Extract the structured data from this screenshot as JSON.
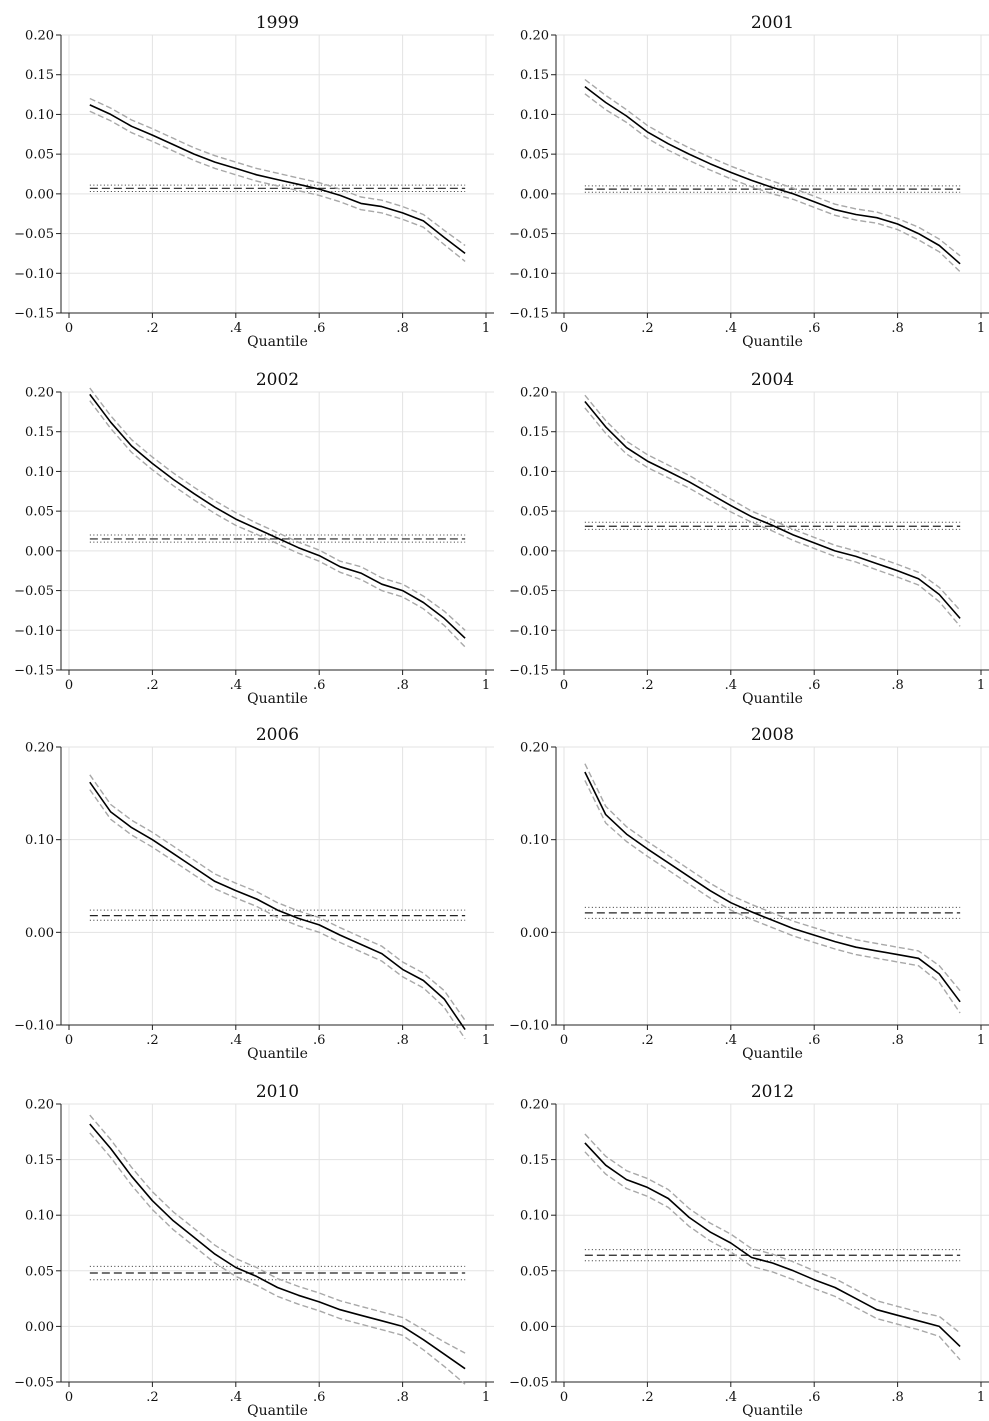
{
  "chart_data": [
    {
      "type": "line",
      "title": "1999",
      "xlabel": "Quantile",
      "xlim": [
        0,
        1
      ],
      "ylim": [
        -0.15,
        0.2
      ],
      "x_ticks": [
        "0",
        ".2",
        ".4",
        ".6",
        ".8",
        "1"
      ],
      "y_ticks": [
        "0.20",
        "0.15",
        "0.10",
        "0.05",
        "0.00",
        "-0.05",
        "-0.10",
        "-0.15"
      ],
      "grid": true,
      "x": [
        0.05,
        0.1,
        0.15,
        0.2,
        0.25,
        0.3,
        0.35,
        0.4,
        0.45,
        0.5,
        0.55,
        0.6,
        0.65,
        0.7,
        0.75,
        0.8,
        0.85,
        0.9,
        0.95
      ],
      "series": [
        {
          "role": "estimate",
          "color": "#000000",
          "dash": "solid",
          "values": [
            0.112,
            0.1,
            0.085,
            0.074,
            0.062,
            0.05,
            0.04,
            0.032,
            0.024,
            0.018,
            0.012,
            0.006,
            -0.002,
            -0.012,
            -0.016,
            -0.024,
            -0.034,
            -0.055,
            -0.075
          ]
        },
        {
          "role": "upper_ci",
          "color": "#a8a8a8",
          "dash": "dashed",
          "values": [
            0.12,
            0.108,
            0.093,
            0.082,
            0.07,
            0.058,
            0.048,
            0.04,
            0.032,
            0.026,
            0.02,
            0.014,
            0.006,
            -0.004,
            -0.008,
            -0.016,
            -0.026,
            -0.046,
            -0.065
          ]
        },
        {
          "role": "lower_ci",
          "color": "#a8a8a8",
          "dash": "dashed",
          "values": [
            0.104,
            0.092,
            0.077,
            0.066,
            0.054,
            0.042,
            0.032,
            0.024,
            0.016,
            0.01,
            0.004,
            -0.002,
            -0.01,
            -0.02,
            -0.024,
            -0.032,
            -0.042,
            -0.064,
            -0.085
          ]
        }
      ],
      "ols_estimate": 0.007,
      "ols_ci": [
        0.003,
        0.011
      ]
    },
    {
      "type": "line",
      "title": "2001",
      "xlabel": "Quantile",
      "xlim": [
        0,
        1
      ],
      "ylim": [
        -0.15,
        0.2
      ],
      "x_ticks": [
        "0",
        ".2",
        ".4",
        ".6",
        ".8",
        "1"
      ],
      "y_ticks": [
        "0.20",
        "0.15",
        "0.10",
        "0.05",
        "0.00",
        "-0.05",
        "-0.10",
        "-0.15"
      ],
      "grid": true,
      "x": [
        0.05,
        0.1,
        0.15,
        0.2,
        0.25,
        0.3,
        0.35,
        0.4,
        0.45,
        0.5,
        0.55,
        0.6,
        0.65,
        0.7,
        0.75,
        0.8,
        0.85,
        0.9,
        0.95
      ],
      "series": [
        {
          "role": "estimate",
          "color": "#000000",
          "dash": "solid",
          "values": [
            0.135,
            0.115,
            0.098,
            0.078,
            0.063,
            0.05,
            0.038,
            0.027,
            0.017,
            0.008,
            0.0,
            -0.01,
            -0.02,
            -0.026,
            -0.03,
            -0.038,
            -0.05,
            -0.065,
            -0.088
          ]
        },
        {
          "role": "upper_ci",
          "color": "#a8a8a8",
          "dash": "dashed",
          "values": [
            0.144,
            0.124,
            0.106,
            0.086,
            0.071,
            0.058,
            0.046,
            0.035,
            0.025,
            0.016,
            0.007,
            -0.003,
            -0.013,
            -0.019,
            -0.023,
            -0.031,
            -0.042,
            -0.057,
            -0.078
          ]
        },
        {
          "role": "lower_ci",
          "color": "#a8a8a8",
          "dash": "dashed",
          "values": [
            0.126,
            0.106,
            0.09,
            0.07,
            0.055,
            0.042,
            0.03,
            0.019,
            0.009,
            0.0,
            -0.007,
            -0.017,
            -0.027,
            -0.033,
            -0.037,
            -0.045,
            -0.058,
            -0.073,
            -0.098
          ]
        }
      ],
      "ols_estimate": 0.006,
      "ols_ci": [
        0.002,
        0.01
      ]
    },
    {
      "type": "line",
      "title": "2002",
      "xlabel": "Quantile",
      "xlim": [
        0,
        1
      ],
      "ylim": [
        -0.15,
        0.2
      ],
      "x_ticks": [
        "0",
        ".2",
        ".4",
        ".6",
        ".8",
        "1"
      ],
      "y_ticks": [
        "0.20",
        "0.15",
        "0.10",
        "0.05",
        "0.00",
        "-0.05",
        "-0.10",
        "-0.15"
      ],
      "grid": true,
      "x": [
        0.05,
        0.1,
        0.15,
        0.2,
        0.25,
        0.3,
        0.35,
        0.4,
        0.45,
        0.5,
        0.55,
        0.6,
        0.65,
        0.7,
        0.75,
        0.8,
        0.85,
        0.9,
        0.95
      ],
      "series": [
        {
          "role": "estimate",
          "color": "#000000",
          "dash": "solid",
          "values": [
            0.197,
            0.162,
            0.132,
            0.11,
            0.09,
            0.072,
            0.055,
            0.04,
            0.028,
            0.016,
            0.004,
            -0.006,
            -0.02,
            -0.028,
            -0.042,
            -0.05,
            -0.065,
            -0.085,
            -0.11
          ]
        },
        {
          "role": "upper_ci",
          "color": "#a8a8a8",
          "dash": "dashed",
          "values": [
            0.205,
            0.17,
            0.14,
            0.118,
            0.098,
            0.08,
            0.063,
            0.048,
            0.035,
            0.023,
            0.011,
            0.001,
            -0.013,
            -0.02,
            -0.034,
            -0.042,
            -0.057,
            -0.076,
            -0.1
          ]
        },
        {
          "role": "lower_ci",
          "color": "#a8a8a8",
          "dash": "dashed",
          "values": [
            0.189,
            0.154,
            0.124,
            0.102,
            0.082,
            0.064,
            0.047,
            0.032,
            0.021,
            0.009,
            -0.003,
            -0.013,
            -0.027,
            -0.036,
            -0.05,
            -0.058,
            -0.073,
            -0.094,
            -0.121
          ]
        }
      ],
      "ols_estimate": 0.015,
      "ols_ci": [
        0.011,
        0.02
      ]
    },
    {
      "type": "line",
      "title": "2004",
      "xlabel": "Quantile",
      "xlim": [
        0,
        1
      ],
      "ylim": [
        -0.15,
        0.2
      ],
      "x_ticks": [
        "0",
        ".2",
        ".4",
        ".6",
        ".8",
        "1"
      ],
      "y_ticks": [
        "0.20",
        "0.15",
        "0.10",
        "0.05",
        "0.00",
        "-0.05",
        "-0.10",
        "-0.15"
      ],
      "grid": true,
      "x": [
        0.05,
        0.1,
        0.15,
        0.2,
        0.25,
        0.3,
        0.35,
        0.4,
        0.45,
        0.5,
        0.55,
        0.6,
        0.65,
        0.7,
        0.75,
        0.8,
        0.85,
        0.9,
        0.95
      ],
      "series": [
        {
          "role": "estimate",
          "color": "#000000",
          "dash": "solid",
          "values": [
            0.188,
            0.156,
            0.13,
            0.113,
            0.1,
            0.087,
            0.072,
            0.057,
            0.043,
            0.032,
            0.02,
            0.01,
            0.0,
            -0.007,
            -0.016,
            -0.025,
            -0.035,
            -0.055,
            -0.085
          ]
        },
        {
          "role": "upper_ci",
          "color": "#a8a8a8",
          "dash": "dashed",
          "values": [
            0.196,
            0.164,
            0.138,
            0.121,
            0.108,
            0.095,
            0.08,
            0.065,
            0.05,
            0.039,
            0.027,
            0.017,
            0.007,
            0.0,
            -0.008,
            -0.017,
            -0.027,
            -0.046,
            -0.075
          ]
        },
        {
          "role": "lower_ci",
          "color": "#a8a8a8",
          "dash": "dashed",
          "values": [
            0.18,
            0.148,
            0.122,
            0.105,
            0.092,
            0.079,
            0.064,
            0.049,
            0.036,
            0.025,
            0.013,
            0.003,
            -0.007,
            -0.014,
            -0.024,
            -0.033,
            -0.043,
            -0.064,
            -0.095
          ]
        }
      ],
      "ols_estimate": 0.031,
      "ols_ci": [
        0.027,
        0.036
      ]
    },
    {
      "type": "line",
      "title": "2006",
      "xlabel": "Quantile",
      "xlim": [
        0,
        1
      ],
      "ylim": [
        -0.1,
        0.2
      ],
      "x_ticks": [
        "0",
        ".2",
        ".4",
        ".6",
        ".8",
        "1"
      ],
      "y_ticks": [
        "0.20",
        "0.10",
        "0.00",
        "-0.10"
      ],
      "grid": true,
      "x": [
        0.05,
        0.1,
        0.15,
        0.2,
        0.25,
        0.3,
        0.35,
        0.4,
        0.45,
        0.5,
        0.55,
        0.6,
        0.65,
        0.7,
        0.75,
        0.8,
        0.85,
        0.9,
        0.95
      ],
      "series": [
        {
          "role": "estimate",
          "color": "#000000",
          "dash": "solid",
          "values": [
            0.162,
            0.13,
            0.113,
            0.1,
            0.085,
            0.07,
            0.055,
            0.045,
            0.036,
            0.024,
            0.015,
            0.008,
            -0.003,
            -0.013,
            -0.023,
            -0.04,
            -0.052,
            -0.072,
            -0.105
          ]
        },
        {
          "role": "upper_ci",
          "color": "#a8a8a8",
          "dash": "dashed",
          "values": [
            0.17,
            0.138,
            0.121,
            0.108,
            0.093,
            0.078,
            0.063,
            0.053,
            0.044,
            0.032,
            0.023,
            0.016,
            0.005,
            -0.005,
            -0.015,
            -0.032,
            -0.044,
            -0.063,
            -0.095
          ]
        },
        {
          "role": "lower_ci",
          "color": "#a8a8a8",
          "dash": "dashed",
          "values": [
            0.154,
            0.122,
            0.105,
            0.092,
            0.077,
            0.062,
            0.047,
            0.037,
            0.028,
            0.016,
            0.007,
            0.0,
            -0.011,
            -0.021,
            -0.031,
            -0.048,
            -0.06,
            -0.081,
            -0.115
          ]
        }
      ],
      "ols_estimate": 0.018,
      "ols_ci": [
        0.013,
        0.024
      ]
    },
    {
      "type": "line",
      "title": "2008",
      "xlabel": "Quantile",
      "xlim": [
        0,
        1
      ],
      "ylim": [
        -0.1,
        0.2
      ],
      "x_ticks": [
        "0",
        ".2",
        ".4",
        ".6",
        ".8",
        "1"
      ],
      "y_ticks": [
        "0.20",
        "0.10",
        "0.00",
        "-0.10"
      ],
      "grid": true,
      "x": [
        0.05,
        0.1,
        0.15,
        0.2,
        0.25,
        0.3,
        0.35,
        0.4,
        0.45,
        0.5,
        0.55,
        0.6,
        0.65,
        0.7,
        0.75,
        0.8,
        0.85,
        0.9,
        0.95
      ],
      "series": [
        {
          "role": "estimate",
          "color": "#000000",
          "dash": "solid",
          "values": [
            0.173,
            0.127,
            0.106,
            0.09,
            0.075,
            0.06,
            0.045,
            0.032,
            0.022,
            0.013,
            0.004,
            -0.003,
            -0.01,
            -0.016,
            -0.02,
            -0.024,
            -0.028,
            -0.045,
            -0.075
          ]
        },
        {
          "role": "upper_ci",
          "color": "#a8a8a8",
          "dash": "dashed",
          "values": [
            0.182,
            0.136,
            0.114,
            0.098,
            0.083,
            0.068,
            0.053,
            0.04,
            0.03,
            0.021,
            0.012,
            0.005,
            -0.002,
            -0.008,
            -0.012,
            -0.016,
            -0.02,
            -0.036,
            -0.063
          ]
        },
        {
          "role": "lower_ci",
          "color": "#a8a8a8",
          "dash": "dashed",
          "values": [
            0.164,
            0.118,
            0.098,
            0.082,
            0.067,
            0.052,
            0.037,
            0.024,
            0.014,
            0.005,
            -0.004,
            -0.011,
            -0.018,
            -0.024,
            -0.028,
            -0.032,
            -0.036,
            -0.054,
            -0.087
          ]
        }
      ],
      "ols_estimate": 0.021,
      "ols_ci": [
        0.015,
        0.027
      ]
    },
    {
      "type": "line",
      "title": "2010",
      "xlabel": "Quantile",
      "xlim": [
        0,
        1
      ],
      "ylim": [
        -0.05,
        0.2
      ],
      "x_ticks": [
        "0",
        ".2",
        ".4",
        ".6",
        ".8",
        "1"
      ],
      "y_ticks": [
        "0.20",
        "0.15",
        "0.10",
        "0.05",
        "0.00",
        "-0.05"
      ],
      "grid": true,
      "x": [
        0.05,
        0.1,
        0.15,
        0.2,
        0.25,
        0.3,
        0.35,
        0.4,
        0.45,
        0.5,
        0.55,
        0.6,
        0.65,
        0.7,
        0.75,
        0.8,
        0.85,
        0.9,
        0.95
      ],
      "series": [
        {
          "role": "estimate",
          "color": "#000000",
          "dash": "solid",
          "values": [
            0.182,
            0.16,
            0.135,
            0.113,
            0.095,
            0.08,
            0.065,
            0.053,
            0.045,
            0.035,
            0.028,
            0.022,
            0.015,
            0.01,
            0.005,
            0.0,
            -0.012,
            -0.025,
            -0.038
          ]
        },
        {
          "role": "upper_ci",
          "color": "#a8a8a8",
          "dash": "dashed",
          "values": [
            0.19,
            0.168,
            0.143,
            0.121,
            0.103,
            0.088,
            0.073,
            0.061,
            0.053,
            0.043,
            0.036,
            0.03,
            0.023,
            0.018,
            0.013,
            0.008,
            -0.003,
            -0.014,
            -0.024
          ]
        },
        {
          "role": "lower_ci",
          "color": "#a8a8a8",
          "dash": "dashed",
          "values": [
            0.174,
            0.152,
            0.127,
            0.105,
            0.087,
            0.072,
            0.057,
            0.045,
            0.037,
            0.027,
            0.02,
            0.014,
            0.007,
            0.002,
            -0.003,
            -0.008,
            -0.021,
            -0.036,
            -0.052
          ]
        }
      ],
      "ols_estimate": 0.048,
      "ols_ci": [
        0.042,
        0.054
      ]
    },
    {
      "type": "line",
      "title": "2012",
      "xlabel": "Quantile",
      "xlim": [
        0,
        1
      ],
      "ylim": [
        -0.05,
        0.2
      ],
      "x_ticks": [
        "0",
        ".2",
        ".4",
        ".6",
        ".8",
        "1"
      ],
      "y_ticks": [
        "0.20",
        "0.15",
        "0.10",
        "0.05",
        "0.00",
        "-0.05"
      ],
      "grid": true,
      "x": [
        0.05,
        0.1,
        0.15,
        0.2,
        0.25,
        0.3,
        0.35,
        0.4,
        0.45,
        0.5,
        0.55,
        0.6,
        0.65,
        0.7,
        0.75,
        0.8,
        0.85,
        0.9,
        0.95
      ],
      "series": [
        {
          "role": "estimate",
          "color": "#000000",
          "dash": "solid",
          "values": [
            0.165,
            0.145,
            0.132,
            0.125,
            0.115,
            0.098,
            0.085,
            0.075,
            0.062,
            0.057,
            0.05,
            0.042,
            0.035,
            0.025,
            0.015,
            0.01,
            0.005,
            0.0,
            -0.018
          ]
        },
        {
          "role": "upper_ci",
          "color": "#a8a8a8",
          "dash": "dashed",
          "values": [
            0.173,
            0.153,
            0.14,
            0.133,
            0.123,
            0.106,
            0.093,
            0.083,
            0.07,
            0.065,
            0.058,
            0.05,
            0.043,
            0.033,
            0.023,
            0.018,
            0.013,
            0.009,
            -0.006
          ]
        },
        {
          "role": "lower_ci",
          "color": "#a8a8a8",
          "dash": "dashed",
          "values": [
            0.157,
            0.137,
            0.124,
            0.117,
            0.107,
            0.09,
            0.077,
            0.067,
            0.054,
            0.049,
            0.042,
            0.034,
            0.027,
            0.017,
            0.007,
            0.002,
            -0.003,
            -0.009,
            -0.03
          ]
        }
      ],
      "ols_estimate": 0.064,
      "ols_ci": [
        0.059,
        0.069
      ]
    }
  ]
}
